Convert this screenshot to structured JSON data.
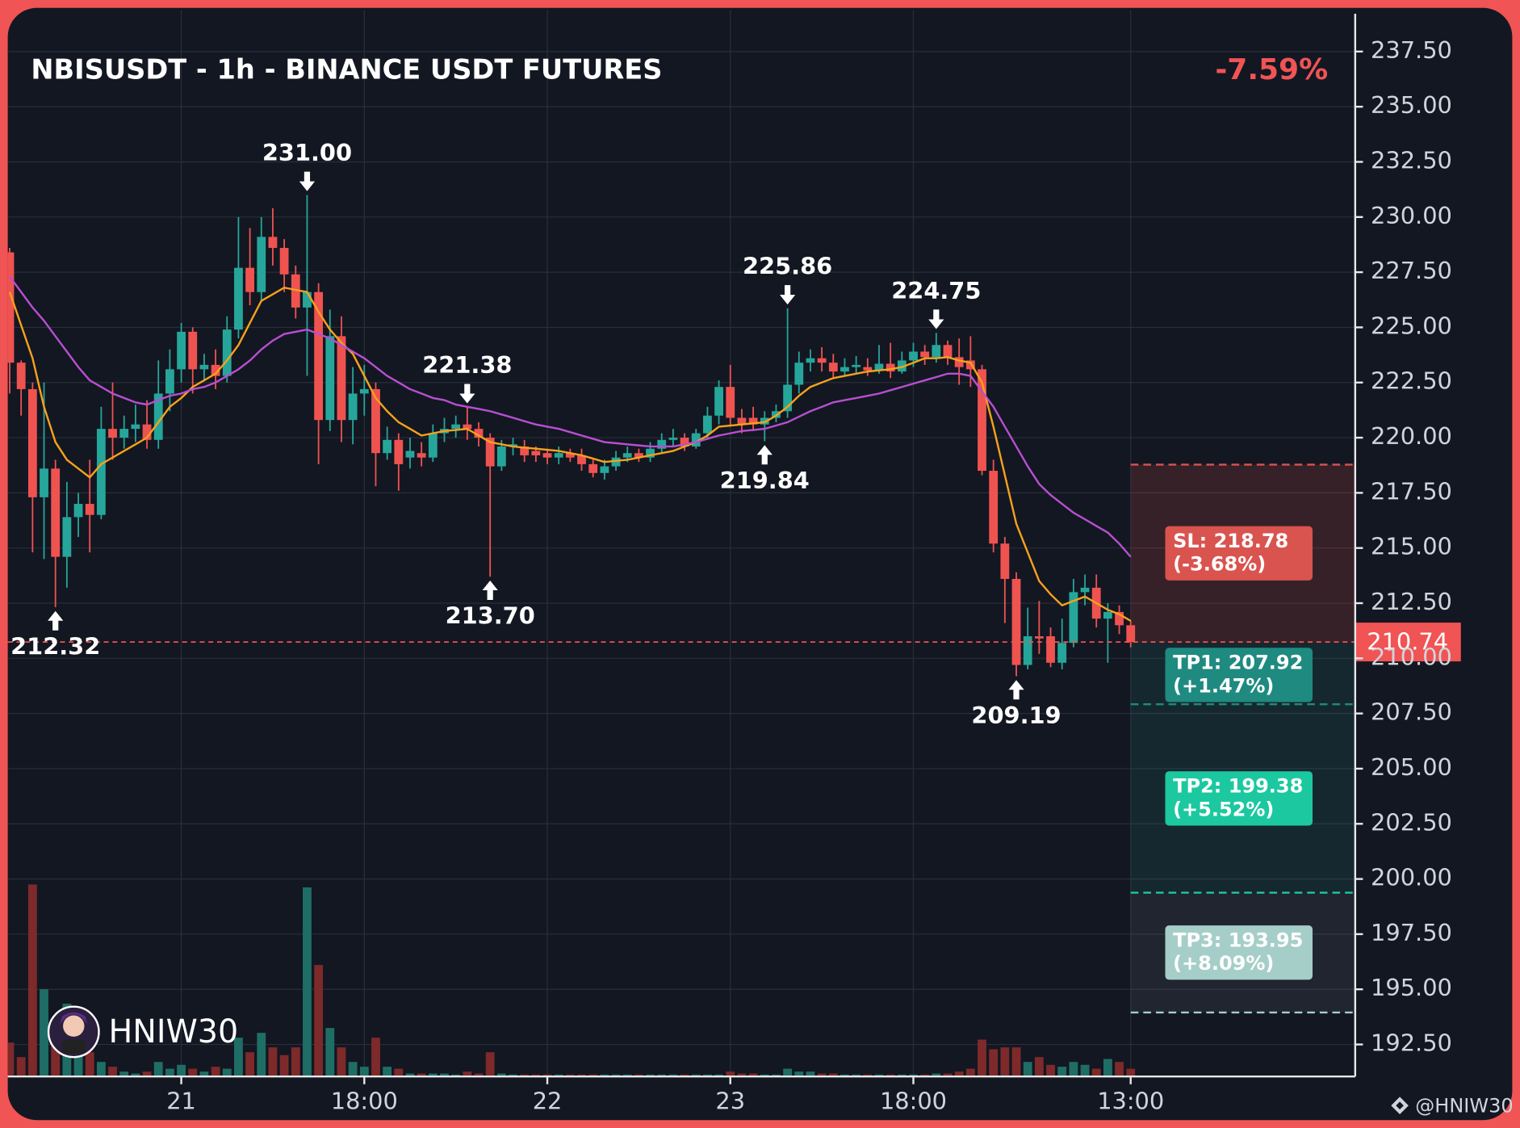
{
  "chart_data": {
    "type": "candlestick",
    "title": "NBISUSDT - 1h - BINANCE USDT FUTURES",
    "change": {
      "value": -7.59,
      "label": "-7.59%"
    },
    "categories": [
      null,
      null,
      null,
      null,
      null,
      null,
      null,
      null,
      null,
      null,
      null,
      null,
      null,
      null,
      null,
      "21",
      null,
      null,
      null,
      null,
      null,
      null,
      null,
      null,
      null,
      null,
      null,
      null,
      null,
      null,
      null,
      "18:00",
      null,
      null,
      null,
      null,
      null,
      null,
      null,
      null,
      null,
      null,
      null,
      null,
      null,
      null,
      null,
      "22",
      null,
      null,
      null,
      null,
      null,
      null,
      null,
      null,
      null,
      null,
      null,
      null,
      null,
      null,
      null,
      "23",
      null,
      null,
      null,
      null,
      null,
      null,
      null,
      null,
      null,
      null,
      null,
      null,
      null,
      null,
      null,
      "18:00",
      null,
      null,
      null,
      null,
      null,
      null,
      null,
      null,
      null,
      null,
      null,
      null,
      null,
      null,
      null,
      null,
      null,
      null,
      "13:00"
    ],
    "open": [
      228.4,
      223.4,
      222.2,
      217.3,
      218.6,
      214.6,
      216.4,
      217.0,
      216.5,
      220.4,
      220.0,
      220.4,
      220.6,
      219.9,
      222.0,
      223.1,
      224.8,
      223.1,
      223.3,
      222.8,
      224.9,
      227.7,
      226.6,
      229.1,
      228.6,
      227.4,
      225.9,
      226.6,
      220.8,
      224.6,
      220.8,
      222.0,
      222.2,
      219.3,
      219.9,
      219.1,
      219.3,
      219.1,
      220.2,
      220.4,
      220.6,
      220.4,
      220.0,
      218.7,
      219.6,
      219.6,
      219.4,
      219.3,
      219.1,
      219.3,
      219.2,
      218.8,
      218.4,
      218.7,
      219.1,
      219.3,
      219.1,
      219.5,
      219.9,
      220.0,
      219.6,
      220.2,
      221.0,
      222.3,
      220.9,
      220.9,
      220.6,
      220.9,
      221.2,
      222.4,
      223.4,
      223.6,
      223.4,
      223.0,
      223.2,
      223.2,
      223.05,
      223.35,
      223.0,
      223.5,
      223.9,
      223.65,
      224.2,
      223.65,
      223.5,
      223.1,
      218.5,
      215.2,
      213.6,
      209.7,
      211.0,
      211.0,
      209.8,
      210.7,
      213.0,
      213.2,
      211.8,
      212.1,
      211.5
    ],
    "high": [
      228.6,
      223.5,
      222.5,
      222.5,
      219.0,
      218.0,
      217.5,
      219.0,
      221.4,
      222.5,
      221.0,
      221.5,
      221.7,
      223.5,
      224.0,
      225.2,
      225.0,
      223.8,
      224.0,
      225.5,
      230.0,
      229.5,
      230.0,
      230.4,
      229.0,
      227.8,
      231.0,
      227.0,
      225.8,
      225.5,
      223.2,
      223.3,
      222.5,
      220.5,
      220.2,
      220.0,
      219.8,
      220.6,
      220.9,
      221.0,
      221.38,
      220.7,
      220.2,
      219.9,
      220.0,
      219.9,
      219.6,
      219.5,
      219.6,
      219.5,
      219.5,
      219.0,
      219.0,
      219.4,
      219.6,
      219.5,
      219.8,
      220.2,
      220.4,
      220.2,
      220.4,
      221.4,
      222.6,
      223.3,
      221.3,
      221.4,
      221.2,
      221.5,
      225.86,
      223.9,
      224.0,
      224.1,
      223.8,
      223.6,
      223.7,
      223.6,
      224.2,
      224.3,
      223.9,
      224.3,
      224.2,
      224.75,
      224.4,
      224.5,
      224.6,
      223.3,
      219.0,
      215.5,
      213.9,
      212.3,
      212.6,
      211.4,
      211.8,
      213.6,
      213.8,
      213.8,
      212.5,
      212.4,
      211.7
    ],
    "low": [
      222.0,
      221.0,
      214.8,
      214.5,
      212.32,
      213.2,
      215.5,
      214.8,
      216.3,
      219.0,
      219.5,
      219.8,
      219.5,
      219.5,
      221.2,
      222.5,
      222.0,
      222.6,
      222.2,
      222.5,
      224.5,
      226.0,
      226.2,
      227.8,
      226.6,
      225.4,
      222.8,
      218.8,
      220.3,
      219.8,
      219.7,
      221.0,
      217.8,
      219.0,
      217.6,
      218.6,
      218.7,
      218.9,
      219.8,
      220.0,
      219.9,
      219.6,
      213.7,
      218.5,
      219.2,
      218.9,
      218.9,
      218.8,
      218.8,
      218.9,
      218.5,
      218.2,
      218.1,
      218.5,
      218.9,
      218.9,
      218.9,
      219.3,
      219.6,
      219.4,
      219.5,
      220.0,
      220.6,
      220.5,
      220.2,
      220.3,
      219.84,
      220.7,
      220.9,
      222.0,
      223.0,
      223.0,
      222.7,
      222.8,
      222.9,
      222.8,
      222.9,
      222.7,
      222.9,
      223.2,
      223.3,
      223.4,
      223.3,
      222.4,
      222.3,
      218.3,
      214.8,
      211.6,
      209.19,
      209.5,
      210.2,
      209.6,
      209.5,
      210.5,
      212.4,
      211.4,
      209.8,
      211.1,
      210.5
    ],
    "close": [
      223.4,
      222.2,
      217.3,
      218.6,
      214.6,
      216.4,
      217.0,
      216.5,
      220.4,
      220.0,
      220.4,
      220.6,
      219.9,
      222.0,
      223.1,
      224.8,
      223.1,
      223.3,
      222.8,
      224.9,
      227.7,
      226.6,
      229.1,
      228.6,
      227.4,
      225.9,
      226.6,
      220.8,
      224.6,
      220.8,
      222.0,
      222.2,
      219.3,
      219.9,
      218.8,
      219.4,
      219.1,
      220.2,
      220.4,
      220.6,
      220.4,
      220.0,
      218.7,
      219.6,
      219.7,
      219.2,
      219.2,
      219.1,
      219.3,
      219.1,
      218.8,
      218.4,
      218.7,
      219.1,
      219.3,
      219.1,
      219.5,
      219.9,
      220.0,
      219.6,
      220.2,
      221.0,
      222.3,
      220.9,
      220.6,
      220.6,
      220.9,
      221.2,
      222.4,
      223.4,
      223.6,
      223.4,
      223.0,
      223.2,
      223.3,
      223.05,
      223.35,
      223.0,
      223.5,
      223.9,
      223.65,
      224.2,
      223.65,
      223.2,
      223.1,
      218.5,
      215.2,
      213.6,
      209.7,
      211.0,
      210.9,
      209.8,
      210.7,
      213.0,
      213.2,
      211.8,
      212.1,
      211.5,
      210.74
    ],
    "up_color": "#26a69a",
    "down_color": "#ef5350",
    "volume": [
      35,
      20,
      198,
      90,
      35,
      75,
      30,
      25,
      15,
      10,
      5,
      3,
      5,
      15,
      8,
      12,
      8,
      5,
      10,
      8,
      40,
      25,
      45,
      30,
      22,
      30,
      195,
      115,
      50,
      30,
      15,
      10,
      40,
      10,
      8,
      3,
      3,
      3,
      3,
      2,
      5,
      3,
      25,
      3,
      2,
      2,
      2,
      2,
      2,
      2,
      2,
      2,
      2,
      2,
      2,
      2,
      2,
      2,
      2,
      2,
      2,
      2,
      2,
      5,
      3,
      3,
      2,
      2,
      8,
      5,
      5,
      3,
      3,
      2,
      2,
      2,
      2,
      2,
      2,
      2,
      2,
      3,
      3,
      5,
      8,
      38,
      28,
      30,
      30,
      15,
      20,
      12,
      10,
      15,
      12,
      8,
      18,
      15,
      8
    ],
    "lines": [
      {
        "color": "#f7a21b",
        "values": [
          226.6,
          225.1,
          223.6,
          221.4,
          219.8,
          219.0,
          218.6,
          218.2,
          218.8,
          219.1,
          219.4,
          219.7,
          220.0,
          220.7,
          221.4,
          221.8,
          222.3,
          222.6,
          222.9,
          223.5,
          224.2,
          225.2,
          226.2,
          226.5,
          226.8,
          226.7,
          226.6,
          225.7,
          224.9,
          224.3,
          223.8,
          222.8,
          221.8,
          221.2,
          220.7,
          220.4,
          220.1,
          220.2,
          220.3,
          220.35,
          220.4,
          220.1,
          219.8,
          219.7,
          219.6,
          219.55,
          219.5,
          219.45,
          219.4,
          219.3,
          219.2,
          219.05,
          218.9,
          218.95,
          219.0,
          219.1,
          219.2,
          219.3,
          219.4,
          219.6,
          219.8,
          220.1,
          220.5,
          220.55,
          220.6,
          220.65,
          220.7,
          221.0,
          221.4,
          221.9,
          222.3,
          222.5,
          222.7,
          222.8,
          222.9,
          223.0,
          223.05,
          223.1,
          223.2,
          223.4,
          223.6,
          223.6,
          223.65,
          223.5,
          223.4,
          222.5,
          220.5,
          218.3,
          216.1,
          214.8,
          213.5,
          212.9,
          212.4,
          212.6,
          212.8,
          212.5,
          212.2,
          212.0,
          211.7
        ]
      },
      {
        "color": "#b84fd1",
        "values": [
          227.3,
          226.6,
          225.9,
          225.3,
          224.6,
          223.9,
          223.2,
          222.6,
          222.3,
          222.0,
          221.8,
          221.6,
          221.5,
          221.7,
          221.9,
          222.0,
          222.2,
          222.3,
          222.5,
          222.8,
          223.1,
          223.5,
          224.0,
          224.4,
          224.7,
          224.8,
          224.9,
          224.7,
          224.5,
          224.2,
          223.9,
          223.6,
          223.2,
          222.8,
          222.5,
          222.2,
          222.0,
          221.8,
          221.7,
          221.5,
          221.4,
          221.3,
          221.2,
          221.05,
          220.9,
          220.75,
          220.6,
          220.5,
          220.4,
          220.25,
          220.1,
          219.95,
          219.8,
          219.75,
          219.7,
          219.65,
          219.6,
          219.6,
          219.6,
          219.7,
          219.8,
          219.95,
          220.1,
          220.2,
          220.3,
          220.35,
          220.4,
          220.55,
          220.7,
          220.95,
          221.2,
          221.4,
          221.6,
          221.7,
          221.8,
          221.9,
          222.0,
          222.15,
          222.3,
          222.45,
          222.6,
          222.75,
          222.9,
          222.9,
          222.8,
          222.1,
          221.4,
          220.5,
          219.6,
          218.7,
          217.9,
          217.4,
          217.0,
          216.6,
          216.3,
          216.0,
          215.7,
          215.2,
          214.6
        ]
      }
    ],
    "ylim": [
      191.05,
      239.39
    ],
    "yticks": [
      {
        "value": 192.5,
        "label": "192.50"
      },
      {
        "value": 195,
        "label": "195.00"
      },
      {
        "value": 197.5,
        "label": "197.50"
      },
      {
        "value": 200,
        "label": "200.00"
      },
      {
        "value": 202.5,
        "label": "202.50"
      },
      {
        "value": 205,
        "label": "205.00"
      },
      {
        "value": 207.5,
        "label": "207.50"
      },
      {
        "value": 210,
        "label": "210.00"
      },
      {
        "value": 212.5,
        "label": "212.50"
      },
      {
        "value": 215,
        "label": "215.00"
      },
      {
        "value": 217.5,
        "label": "217.50"
      },
      {
        "value": 220,
        "label": "220.00"
      },
      {
        "value": 222.5,
        "label": "222.50"
      },
      {
        "value": 225,
        "label": "225.00"
      },
      {
        "value": 227.5,
        "label": "227.50"
      },
      {
        "value": 230,
        "label": "230.00"
      },
      {
        "value": 232.5,
        "label": "232.50"
      },
      {
        "value": 235,
        "label": "235.00"
      },
      {
        "value": 237.5,
        "label": "237.50"
      }
    ],
    "grid": true,
    "price": {
      "value": 210.74,
      "label": "210.74"
    },
    "annotations": [
      {
        "value": 212.32,
        "label": "212.32",
        "at": "low"
      },
      {
        "value": 231,
        "label": "231.00",
        "at": "high"
      },
      {
        "value": 221.38,
        "label": "221.38",
        "at": "high"
      },
      {
        "value": 213.7,
        "label": "213.70",
        "at": "low"
      },
      {
        "value": 225.86,
        "label": "225.86",
        "at": "high"
      },
      {
        "value": 219.84,
        "label": "219.84",
        "at": "low"
      },
      {
        "value": 224.75,
        "label": "224.75",
        "at": "high"
      },
      {
        "value": 209.19,
        "label": "209.19",
        "at": "low"
      }
    ],
    "levels": [
      {
        "value": 218.78,
        "label": "SL: 218.78",
        "note": "(-3.68%)",
        "color": "#d9534f"
      },
      {
        "value": 207.92,
        "label": "TP1: 207.92",
        "note": "(+1.47%)",
        "color": "#1f8a80"
      },
      {
        "value": 199.38,
        "label": "TP2: 199.38",
        "note": "(+5.52%)",
        "color": "#1cc8a0"
      },
      {
        "value": 193.95,
        "label": "TP3: 193.95",
        "note": "(+8.09%)",
        "color": "#a5cec8"
      }
    ],
    "watermark": "HNIW30",
    "credit": "@HNIW30"
  }
}
